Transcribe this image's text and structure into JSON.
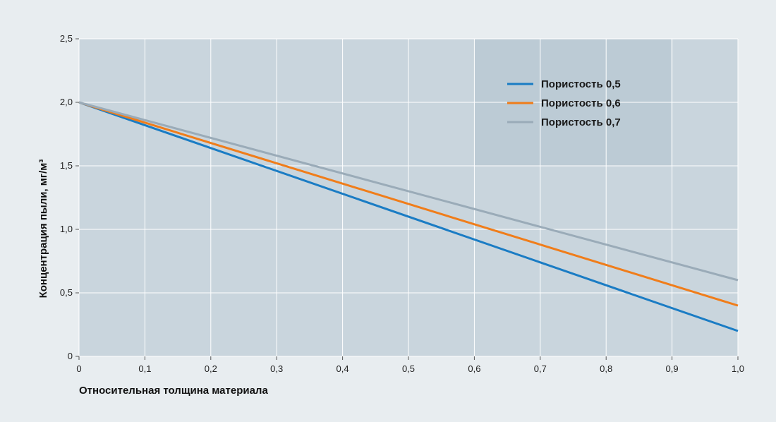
{
  "chart_data": {
    "type": "line",
    "xlabel": "Относительная толщина материала",
    "ylabel": "Концентрация пыли, мг/м³",
    "x_ticks": [
      "0",
      "0,1",
      "0,2",
      "0,3",
      "0,4",
      "0,5",
      "0,6",
      "0,7",
      "0,8",
      "0,9",
      "1,0"
    ],
    "y_ticks": [
      "0",
      "0,5",
      "1,0",
      "1,5",
      "2,0",
      "2,5"
    ],
    "xlim": [
      0,
      1
    ],
    "ylim": [
      0,
      2.5
    ],
    "grid": true,
    "legend_position": "top-right",
    "x": [
      0,
      1
    ],
    "series": [
      {
        "name": "Пористость 0,5",
        "color": "#1a7cc4",
        "values": [
          2.0,
          0.2
        ]
      },
      {
        "name": "Пористость 0,6",
        "color": "#f07d1a",
        "values": [
          2.0,
          0.4
        ]
      },
      {
        "name": "Пористость 0,7",
        "color": "#9aabb8",
        "values": [
          2.0,
          0.6
        ]
      }
    ],
    "colors": {
      "plot_background": "#c9d5dd",
      "legend_background": "#bccbd5",
      "grid": "#ffffff"
    }
  }
}
